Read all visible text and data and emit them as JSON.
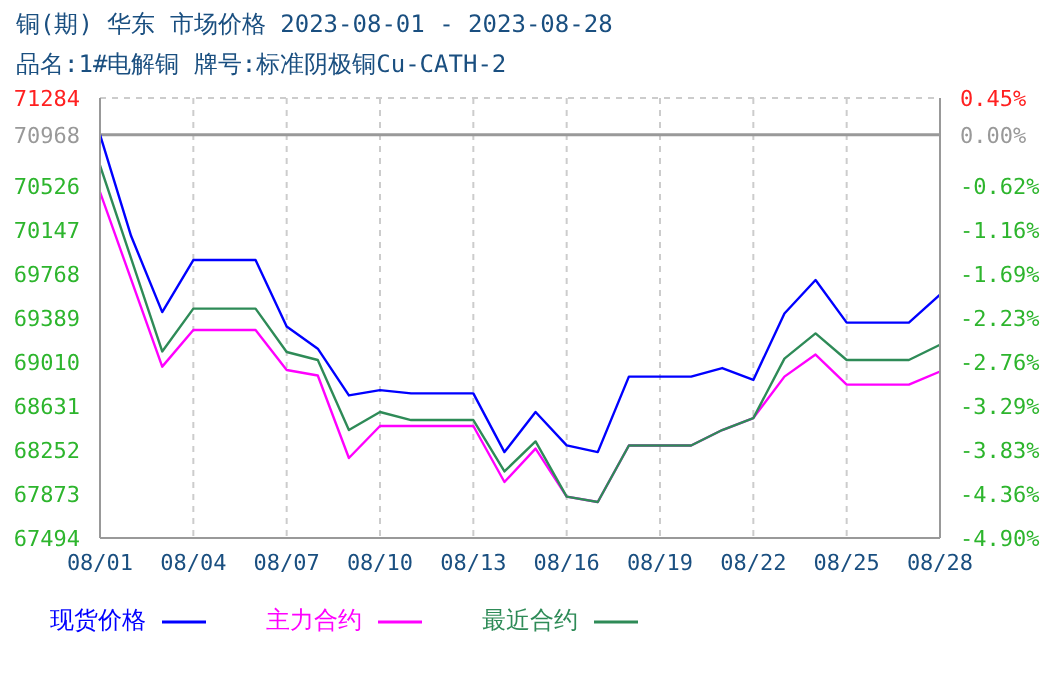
{
  "chart_data": {
    "type": "line",
    "title": "铜(期) 华东 市场价格 2023-08-01 - 2023-08-28",
    "subtitle": "品名:1#电解铜 牌号:标准阴极铜Cu-CATH-2",
    "xlim": [
      "2023-08-01",
      "2023-08-28"
    ],
    "xticks": [
      {
        "value": "2023-08-01",
        "label": "08/01"
      },
      {
        "value": "2023-08-04",
        "label": "08/04"
      },
      {
        "value": "2023-08-07",
        "label": "08/07"
      },
      {
        "value": "2023-08-10",
        "label": "08/10"
      },
      {
        "value": "2023-08-13",
        "label": "08/13"
      },
      {
        "value": "2023-08-16",
        "label": "08/16"
      },
      {
        "value": "2023-08-19",
        "label": "08/19"
      },
      {
        "value": "2023-08-22",
        "label": "08/22"
      },
      {
        "value": "2023-08-25",
        "label": "08/25"
      },
      {
        "value": "2023-08-28",
        "label": "08/28"
      }
    ],
    "ylim": [
      67494,
      71284
    ],
    "yticks": [
      67494,
      67873,
      68252,
      68631,
      69010,
      69389,
      69768,
      70147,
      70526,
      70968,
      71284
    ],
    "y2lim": [
      -4.9,
      0.45
    ],
    "y2ticks": [
      {
        "value": -4.9,
        "label": "-4.90%"
      },
      {
        "value": -4.36,
        "label": "-4.36%"
      },
      {
        "value": -3.83,
        "label": "-3.83%"
      },
      {
        "value": -3.29,
        "label": "-3.29%"
      },
      {
        "value": -2.76,
        "label": "-2.76%"
      },
      {
        "value": -2.23,
        "label": "-2.23%"
      },
      {
        "value": -1.69,
        "label": "-1.69%"
      },
      {
        "value": -1.16,
        "label": "-1.16%"
      },
      {
        "value": -0.62,
        "label": "-0.62%"
      },
      {
        "value": 0,
        "label": "0.00%"
      },
      {
        "value": 0.45,
        "label": "0.45%"
      }
    ],
    "ref_lines": [
      {
        "axis": "y",
        "value": 70968,
        "color": "#999999"
      }
    ],
    "x": [
      "2023-08-01",
      "2023-08-02",
      "2023-08-03",
      "2023-08-04",
      "2023-08-06",
      "2023-08-07",
      "2023-08-08",
      "2023-08-09",
      "2023-08-10",
      "2023-08-11",
      "2023-08-13",
      "2023-08-14",
      "2023-08-15",
      "2023-08-16",
      "2023-08-17",
      "2023-08-18",
      "2023-08-20",
      "2023-08-21",
      "2023-08-22",
      "2023-08-23",
      "2023-08-24",
      "2023-08-25",
      "2023-08-27",
      "2023-08-28"
    ],
    "series": [
      {
        "name": "现货价格",
        "color": "#0000ff",
        "values": [
          70968,
          70095,
          69440,
          69888,
          69888,
          69315,
          69125,
          68722,
          68768,
          68740,
          68740,
          68234,
          68579,
          68292,
          68234,
          68884,
          68884,
          68958,
          68855,
          69428,
          69716,
          69349,
          69349,
          69590
        ]
      },
      {
        "name": "主力合约",
        "color": "#ff00ff",
        "values": [
          70474,
          null,
          68970,
          69285,
          69285,
          68941,
          68894,
          68183,
          68459,
          68459,
          68459,
          67976,
          68264,
          67850,
          67804,
          68291,
          68291,
          68424,
          68527,
          68884,
          69074,
          68815,
          68815,
          68928
        ]
      },
      {
        "name": "最近合约",
        "color": "#2e8b57",
        "values": [
          70703,
          null,
          69101,
          69470,
          69470,
          69096,
          69027,
          68424,
          68579,
          68510,
          68510,
          68067,
          68326,
          67850,
          67804,
          68291,
          68291,
          68424,
          68527,
          69039,
          69256,
          69027,
          69027,
          69159
        ]
      }
    ],
    "grid": true,
    "line_style": "solid",
    "marker": "none",
    "legend": "bottom"
  }
}
